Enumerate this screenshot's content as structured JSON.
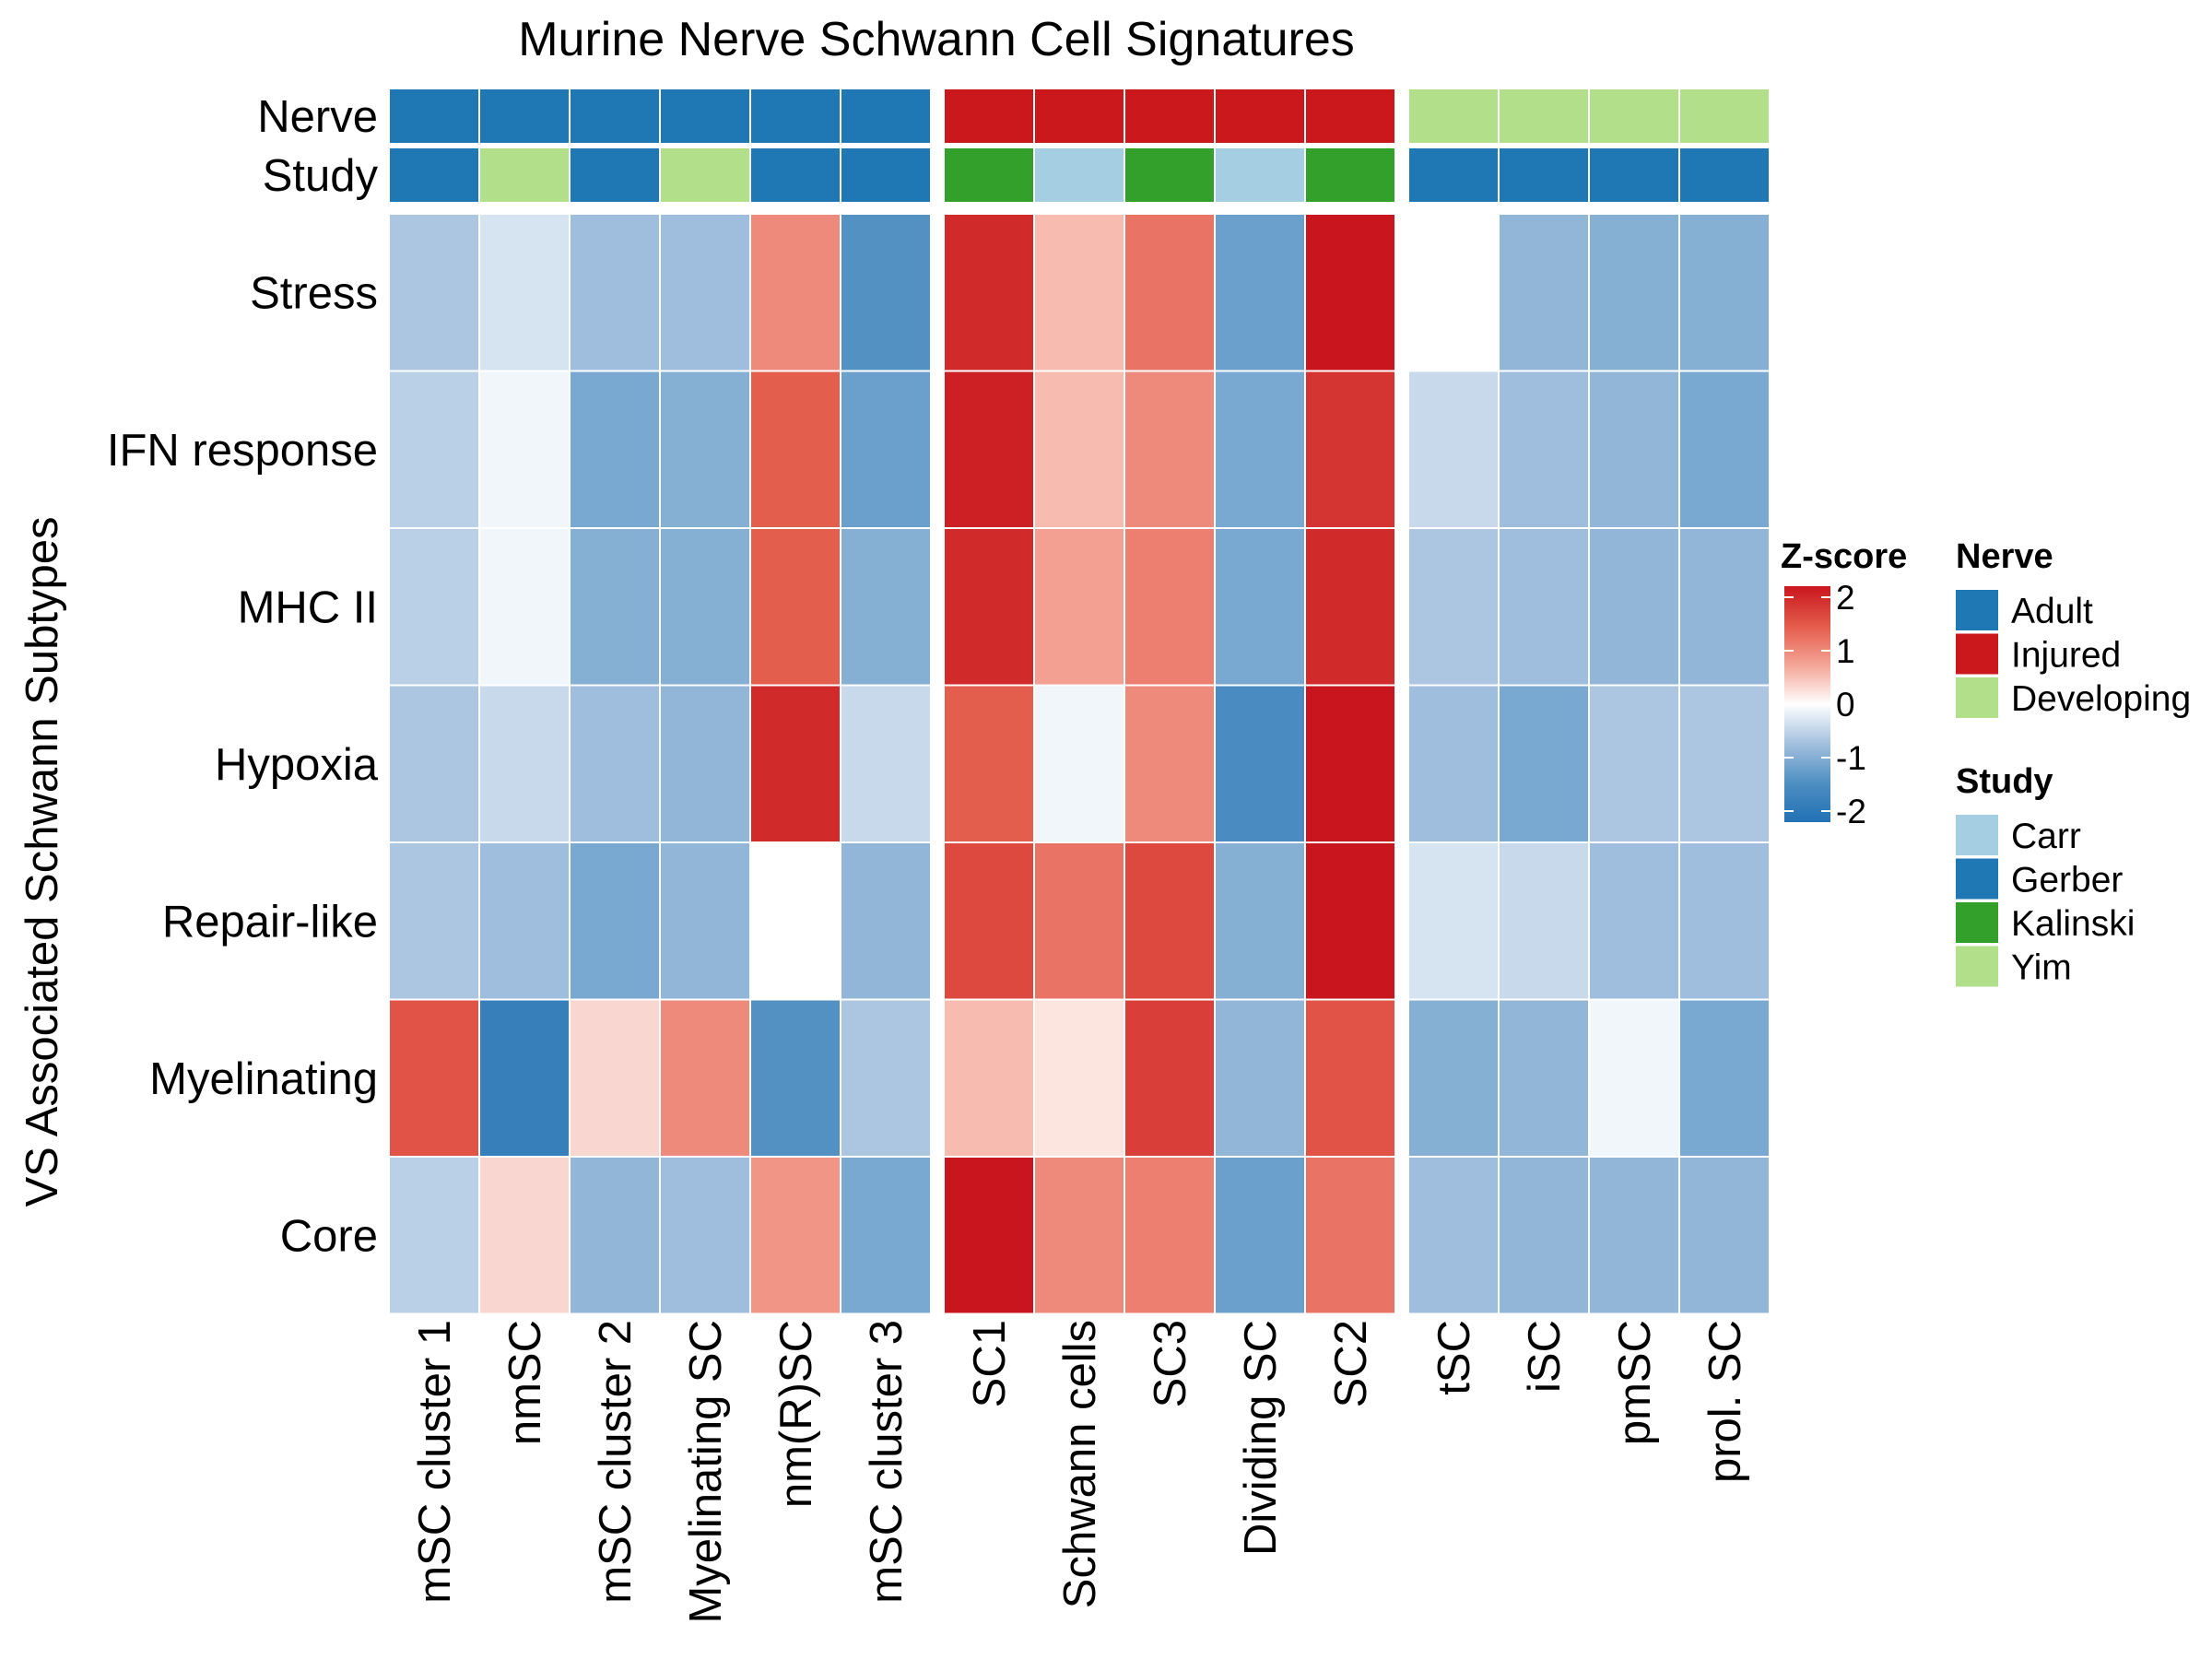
{
  "chart_data": {
    "type": "heatmap",
    "title": "Murine Nerve Schwann Cell Signatures",
    "ylabel": "VS Associated Schwann Subtypes",
    "rows": [
      "Stress",
      "IFN response",
      "MHC II",
      "Hypoxia",
      "Repair-like",
      "Myelinating",
      "Core"
    ],
    "columns": [
      "mSC cluster 1",
      "nmSC",
      "mSC cluster 2",
      "Myelinating SC",
      "nm(R)SC",
      "mSC cluster 3",
      "SC1",
      "Schwann cells",
      "SC3",
      "Dividing SC",
      "SC2",
      "tSC",
      "iSC",
      "pmSC",
      "prol. SC"
    ],
    "column_groups": [
      6,
      5,
      4
    ],
    "values": [
      [
        -0.6,
        -0.3,
        -0.7,
        -0.7,
        0.9,
        -1.3,
        1.8,
        0.5,
        1.1,
        -1.1,
        2.0,
        0.0,
        -0.8,
        -0.9,
        -0.9
      ],
      [
        -0.5,
        -0.1,
        -1.0,
        -0.9,
        1.3,
        -1.1,
        1.9,
        0.5,
        0.9,
        -1.0,
        1.7,
        -0.4,
        -0.7,
        -0.8,
        -1.0
      ],
      [
        -0.5,
        -0.1,
        -0.9,
        -0.9,
        1.3,
        -0.9,
        1.8,
        0.7,
        1.0,
        -1.0,
        1.8,
        -0.6,
        -0.7,
        -0.8,
        -0.8
      ],
      [
        -0.6,
        -0.4,
        -0.7,
        -0.8,
        1.8,
        -0.4,
        1.3,
        -0.1,
        0.9,
        -1.4,
        2.2,
        -0.7,
        -1.0,
        -0.6,
        -0.6
      ],
      [
        -0.6,
        -0.7,
        -1.0,
        -0.8,
        0.0,
        -0.8,
        1.5,
        1.1,
        1.5,
        -0.9,
        2.2,
        -0.3,
        -0.4,
        -0.7,
        -0.7
      ],
      [
        1.4,
        -1.7,
        0.3,
        0.9,
        -1.3,
        -0.6,
        0.5,
        0.2,
        1.6,
        -0.8,
        1.4,
        -0.9,
        -0.8,
        -0.1,
        -1.0
      ],
      [
        -0.5,
        0.3,
        -0.8,
        -0.7,
        0.8,
        -1.0,
        2.2,
        0.9,
        1.0,
        -1.1,
        1.1,
        -0.7,
        -0.8,
        -0.8,
        -0.8
      ]
    ],
    "annotations": {
      "Nerve": [
        "Adult",
        "Adult",
        "Adult",
        "Adult",
        "Adult",
        "Adult",
        "Injured",
        "Injured",
        "Injured",
        "Injured",
        "Injured",
        "Developing",
        "Developing",
        "Developing",
        "Developing"
      ],
      "Study": [
        "Gerber",
        "Yim",
        "Gerber",
        "Yim",
        "Gerber",
        "Gerber",
        "Kalinski",
        "Carr",
        "Kalinski",
        "Carr",
        "Kalinski",
        "Gerber",
        "Gerber",
        "Gerber",
        "Gerber"
      ]
    },
    "annotation_names": [
      "Nerve",
      "Study"
    ],
    "colorscale": {
      "title": "Z-score",
      "min": -2,
      "max": 2,
      "ticks": [
        "2",
        "1",
        "0",
        "-1",
        "-2"
      ],
      "stops": [
        "#2171b5",
        "#4f8fc2",
        "#a3c0de",
        "#ffffff",
        "#f4a496",
        "#e35a4a",
        "#c9161e"
      ]
    },
    "legends": [
      {
        "title": "Nerve",
        "items": [
          {
            "label": "Adult",
            "color": "#1f77b4"
          },
          {
            "label": "Injured",
            "color": "#cb181d"
          },
          {
            "label": "Developing",
            "color": "#b2df8a"
          }
        ]
      },
      {
        "title": "Study",
        "items": [
          {
            "label": "Carr",
            "color": "#a6cee3"
          },
          {
            "label": "Gerber",
            "color": "#1f78b4"
          },
          {
            "label": "Kalinski",
            "color": "#33a02c"
          },
          {
            "label": "Yim",
            "color": "#b2df8a"
          }
        ]
      }
    ]
  }
}
